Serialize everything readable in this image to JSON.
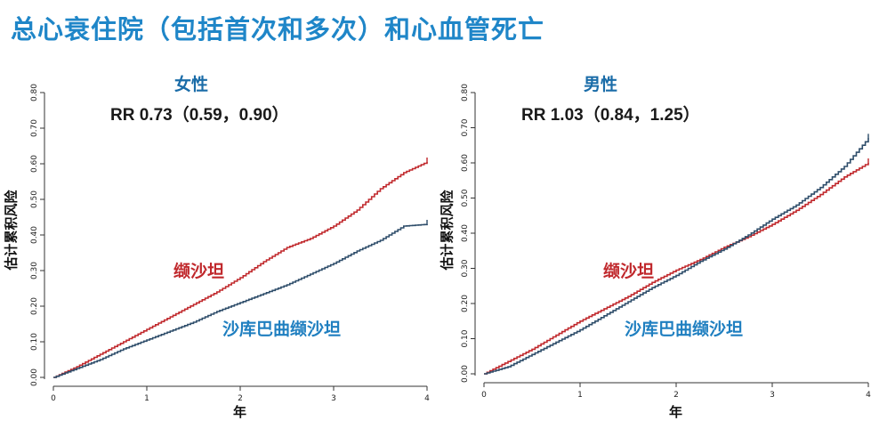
{
  "slide": {
    "title": "总心衰住院（包括首次和多次）和心血管死亡"
  },
  "colors": {
    "title": "#1f86c8",
    "panel_title": "#1a6ca8",
    "valsartan": "#c0282c",
    "sacubitril_valsartan": "#2e4d6a",
    "series_label_sv": "#1f7fc0"
  },
  "chart_data": [
    {
      "type": "line",
      "title": "女性",
      "annotation": "RR 0.73（0.59，0.90）",
      "xlabel": "年",
      "ylabel": "估计累积风险",
      "xlim": [
        0,
        4
      ],
      "ylim": [
        0,
        0.8
      ],
      "xticks": [
        "0",
        "1",
        "2",
        "3",
        "4"
      ],
      "yticks": [
        "0.00",
        "0.10",
        "0.20",
        "0.30",
        "0.40",
        "0.50",
        "0.60",
        "0.70",
        "0.80"
      ],
      "series": [
        {
          "name": "缬沙坦",
          "color": "#c0282c",
          "x": [
            0,
            0.25,
            0.5,
            0.75,
            1.0,
            1.25,
            1.5,
            1.75,
            2.0,
            2.25,
            2.5,
            2.75,
            3.0,
            3.25,
            3.5,
            3.75,
            4.0
          ],
          "y": [
            0,
            0.03,
            0.065,
            0.1,
            0.135,
            0.17,
            0.205,
            0.24,
            0.28,
            0.325,
            0.365,
            0.39,
            0.425,
            0.47,
            0.53,
            0.575,
            0.605
          ]
        },
        {
          "name": "沙库巴曲缬沙坦",
          "color": "#2e4d6a",
          "x": [
            0,
            0.25,
            0.5,
            0.75,
            1.0,
            1.25,
            1.5,
            1.75,
            2.0,
            2.25,
            2.5,
            2.75,
            3.0,
            3.25,
            3.5,
            3.75,
            4.0
          ],
          "y": [
            0,
            0.025,
            0.05,
            0.08,
            0.105,
            0.13,
            0.155,
            0.185,
            0.21,
            0.235,
            0.26,
            0.29,
            0.32,
            0.355,
            0.385,
            0.425,
            0.43
          ]
        }
      ]
    },
    {
      "type": "line",
      "title": "男性",
      "annotation": "RR 1.03（0.84，1.25）",
      "xlabel": "年",
      "ylabel": "估计累积风险",
      "xlim": [
        0,
        4
      ],
      "ylim": [
        0,
        0.8
      ],
      "xticks": [
        "0",
        "1",
        "2",
        "3",
        "4"
      ],
      "yticks": [
        "0.00",
        "0.10",
        "0.20",
        "0.30",
        "0.40",
        "0.50",
        "0.60",
        "0.70",
        "0.80"
      ],
      "series": [
        {
          "name": "缬沙坦",
          "color": "#c0282c",
          "x": [
            0,
            0.25,
            0.5,
            0.75,
            1.0,
            1.25,
            1.5,
            1.75,
            2.0,
            2.25,
            2.5,
            2.75,
            3.0,
            3.25,
            3.5,
            3.75,
            4.0
          ],
          "y": [
            0,
            0.035,
            0.07,
            0.11,
            0.15,
            0.185,
            0.22,
            0.26,
            0.295,
            0.325,
            0.36,
            0.39,
            0.425,
            0.465,
            0.51,
            0.56,
            0.6
          ]
        },
        {
          "name": "沙库巴曲缬沙坦",
          "color": "#2e4d6a",
          "x": [
            0,
            0.25,
            0.5,
            0.75,
            1.0,
            1.25,
            1.5,
            1.75,
            2.0,
            2.25,
            2.5,
            2.75,
            3.0,
            3.25,
            3.5,
            3.75,
            4.0
          ],
          "y": [
            0,
            0.02,
            0.055,
            0.09,
            0.125,
            0.165,
            0.205,
            0.245,
            0.28,
            0.32,
            0.355,
            0.395,
            0.44,
            0.48,
            0.53,
            0.59,
            0.67
          ]
        }
      ]
    }
  ]
}
